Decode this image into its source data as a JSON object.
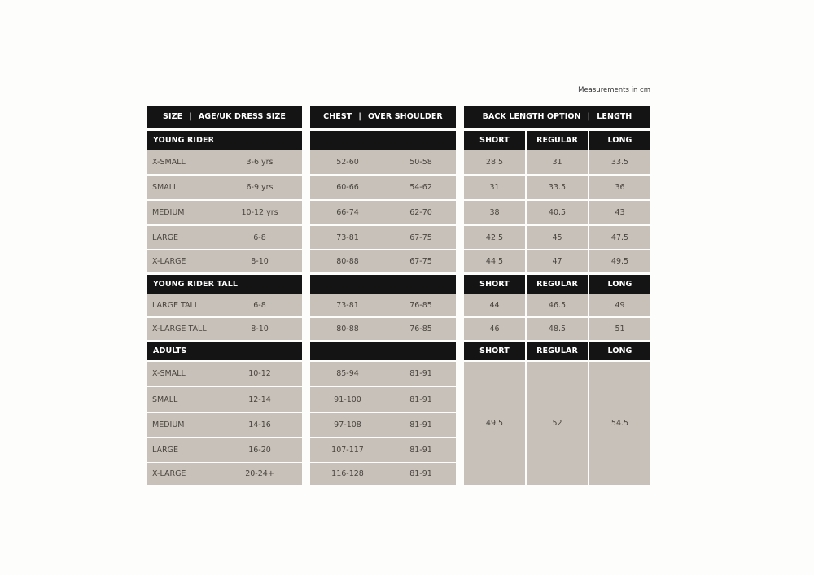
{
  "note": "Measurements in cm",
  "headers": {
    "size": "SIZE",
    "age": "AGE/UK DRESS SIZE",
    "chest": "CHEST",
    "shoulder": "OVER SHOULDER",
    "back": "BACK LENGTH OPTION",
    "length": "LENGTH",
    "separator": "|"
  },
  "length_options": [
    "SHORT",
    "REGULAR",
    "LONG"
  ],
  "colors": {
    "header_bg": "#141414",
    "cell_bg": "#c8c1b9",
    "text": "#4a4540"
  },
  "sections": [
    {
      "title": "YOUNG RIDER",
      "rows": [
        {
          "size": "X-SMALL",
          "age": "3-6 yrs",
          "chest": "52-60",
          "shoulder": "50-58",
          "lengths": [
            "28.5",
            "31",
            "33.5"
          ]
        },
        {
          "size": "SMALL",
          "age": "6-9 yrs",
          "chest": "60-66",
          "shoulder": "54-62",
          "lengths": [
            "31",
            "33.5",
            "36"
          ]
        },
        {
          "size": "MEDIUM",
          "age": "10-12 yrs",
          "chest": "66-74",
          "shoulder": "62-70",
          "lengths": [
            "38",
            "40.5",
            "43"
          ]
        },
        {
          "size": "LARGE",
          "age": "6-8",
          "chest": "73-81",
          "shoulder": "67-75",
          "lengths": [
            "42.5",
            "45",
            "47.5"
          ]
        },
        {
          "size": "X-LARGE",
          "age": "8-10",
          "chest": "80-88",
          "shoulder": "67-75",
          "lengths": [
            "44.5",
            "47",
            "49.5"
          ]
        }
      ]
    },
    {
      "title": "YOUNG RIDER TALL",
      "rows": [
        {
          "size": "LARGE TALL",
          "age": "6-8",
          "chest": "73-81",
          "shoulder": "76-85",
          "lengths": [
            "44",
            "46.5",
            "49"
          ]
        },
        {
          "size": "X-LARGE TALL",
          "age": "8-10",
          "chest": "80-88",
          "shoulder": "76-85",
          "lengths": [
            "46",
            "48.5",
            "51"
          ]
        }
      ]
    },
    {
      "title": "ADULTS",
      "merged_lengths": [
        "49.5",
        "52",
        "54.5"
      ],
      "rows": [
        {
          "size": "X-SMALL",
          "age": "10-12",
          "chest": "85-94",
          "shoulder": "81-91"
        },
        {
          "size": "SMALL",
          "age": "12-14",
          "chest": "91-100",
          "shoulder": "81-91"
        },
        {
          "size": "MEDIUM",
          "age": "14-16",
          "chest": "97-108",
          "shoulder": "81-91"
        },
        {
          "size": "LARGE",
          "age": "16-20",
          "chest": "107-117",
          "shoulder": "81-91"
        },
        {
          "size": "X-LARGE",
          "age": "20-24+",
          "chest": "116-128",
          "shoulder": "81-91"
        }
      ]
    }
  ]
}
